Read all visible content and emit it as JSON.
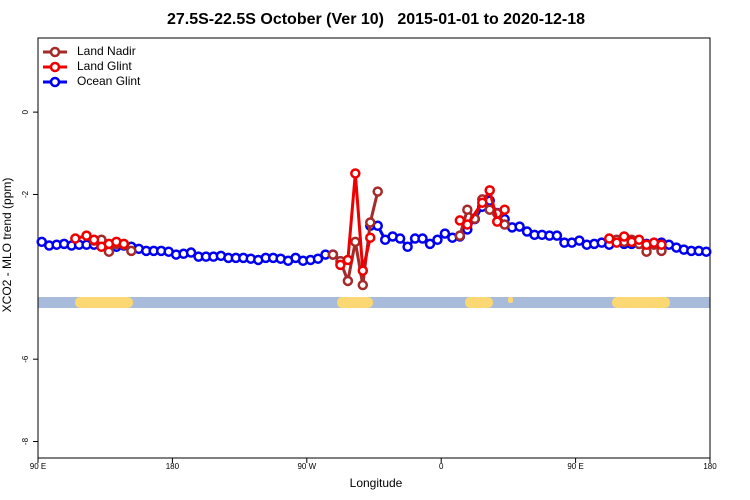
{
  "chart_data": {
    "type": "line",
    "title": "27.5S-22.5S October (Ver 10)   2015-01-01 to 2020-12-18",
    "x_label": "Longitude",
    "y_label": "XCO2 - MLO trend (ppm)",
    "xlim": [
      90,
      540
    ],
    "xticks": [
      {
        "value": 90,
        "label": "90 E"
      },
      180,
      {
        "value": 270,
        "label": "90 W"
      },
      {
        "value": 360,
        "label": "0"
      },
      {
        "value": 450,
        "label": "90 E"
      },
      {
        "value": 540,
        "label": "180"
      }
    ],
    "ylim": [
      -8.4,
      1.8
    ],
    "yticks": [
      0,
      -2,
      -6,
      -8
    ],
    "legend": "top-left",
    "series": [
      {
        "name": "Ocean Glint",
        "color": "#0000ee",
        "x": [
          92.5,
          97.5,
          102.5,
          107.5,
          112.5,
          117.5,
          122.5,
          127.5,
          132.5,
          137.5,
          142.5,
          147.5,
          152.5,
          157.5,
          162.5,
          167.5,
          172.5,
          177.5,
          182.5,
          187.5,
          192.5,
          197.5,
          202.5,
          207.5,
          212.5,
          217.5,
          222.5,
          227.5,
          232.5,
          237.5,
          242.5,
          247.5,
          252.5,
          257.5,
          262.5,
          267.5,
          272.5,
          277.5,
          282.5,
          287.5,
          292.5,
          297.5,
          302.5,
          307.5,
          312.5,
          317.5,
          322.5,
          327.5,
          332.5,
          337.5,
          342.5,
          347.5,
          352.5,
          357.5,
          362.5,
          367.5,
          372.5,
          377.5,
          382.5,
          387.5,
          392.5,
          397.5,
          402.5,
          407.5,
          412.5,
          417.5,
          422.5,
          427.5,
          432.5,
          437.5,
          442.5,
          447.5,
          452.5,
          457.5,
          462.5,
          467.5,
          472.5,
          477.5,
          482.5,
          487.5,
          492.5,
          497.5,
          502.5,
          507.5,
          512.5,
          517.5,
          522.5,
          527.5,
          532.5,
          537.5
        ],
        "values": [
          -3.15,
          -3.24,
          -3.22,
          -3.2,
          -3.24,
          -3.22,
          -3.22,
          -3.22,
          -3.24,
          -3.24,
          -3.27,
          -3.24,
          -3.27,
          -3.32,
          -3.37,
          -3.37,
          -3.37,
          -3.39,
          -3.46,
          -3.44,
          -3.41,
          -3.51,
          -3.51,
          -3.51,
          -3.49,
          -3.54,
          -3.54,
          -3.54,
          -3.56,
          -3.59,
          -3.54,
          -3.54,
          -3.56,
          -3.61,
          -3.54,
          -3.61,
          -3.59,
          -3.56,
          -3.46,
          -3.46,
          null,
          null,
          null,
          null,
          -2.76,
          -2.76,
          -3.1,
          -3.02,
          -3.07,
          -3.27,
          -3.07,
          -3.07,
          -3.2,
          -3.1,
          -2.95,
          -3.05,
          -3.02,
          -2.85,
          -2.6,
          -2.3,
          -2.15,
          -2.45,
          -2.6,
          -2.8,
          -2.78,
          -2.9,
          -2.98,
          -2.98,
          -3.0,
          -3.0,
          -3.17,
          -3.17,
          -3.12,
          -3.22,
          -3.2,
          -3.17,
          -3.22,
          -3.15,
          -3.2,
          -3.2,
          -3.2,
          -3.2,
          -3.2,
          -3.17,
          -3.22,
          -3.29,
          -3.34,
          -3.37,
          -3.37,
          -3.39
        ]
      },
      {
        "name": "Land Nadir",
        "color": "#a52a2a",
        "x": [
          127.5,
          132.5,
          137.5,
          142.5,
          147.5,
          152.5,
          null,
          287.5,
          292.5,
          297.5,
          302.5,
          307.5,
          312.5,
          317.5,
          null,
          372.5,
          377.5,
          382.5,
          387.5,
          392.5,
          397.5,
          402.5,
          null,
          477.5,
          482.5,
          487.5,
          492.5,
          497.5,
          502.5,
          507.5
        ],
        "values": [
          -3.12,
          -3.1,
          -3.39,
          -3.2,
          -3.22,
          -3.37,
          null,
          -3.46,
          -3.62,
          -4.1,
          -3.15,
          -4.2,
          -2.68,
          -1.93,
          null,
          -3.0,
          -2.37,
          -2.59,
          -2.12,
          -2.37,
          -2.46,
          -2.73,
          null,
          -3.1,
          -3.15,
          -3.1,
          -3.2,
          -3.39,
          -3.22,
          -3.37
        ]
      },
      {
        "name": "Land Glint",
        "color": "#ee0000",
        "x": [
          115,
          122.5,
          127.5,
          132.5,
          137.5,
          142.5,
          147.5,
          null,
          292.5,
          297.5,
          302.5,
          307.5,
          312.5,
          null,
          372.5,
          377.5,
          387.5,
          392.5,
          397.5,
          402.5,
          null,
          472.5,
          477.5,
          482.5,
          487.5,
          492.5,
          497.5,
          502.5,
          507.5
        ],
        "values": [
          -3.07,
          -3.0,
          -3.1,
          -3.27,
          -3.2,
          -3.15,
          -3.2,
          null,
          -3.71,
          -3.59,
          -1.49,
          -3.85,
          -3.05,
          null,
          -2.63,
          -2.73,
          -2.2,
          -1.9,
          -2.66,
          -2.37,
          null,
          -3.07,
          -3.17,
          -3.02,
          -3.15,
          -3.1,
          -3.22,
          -3.17,
          -3.22
        ]
      }
    ]
  }
}
